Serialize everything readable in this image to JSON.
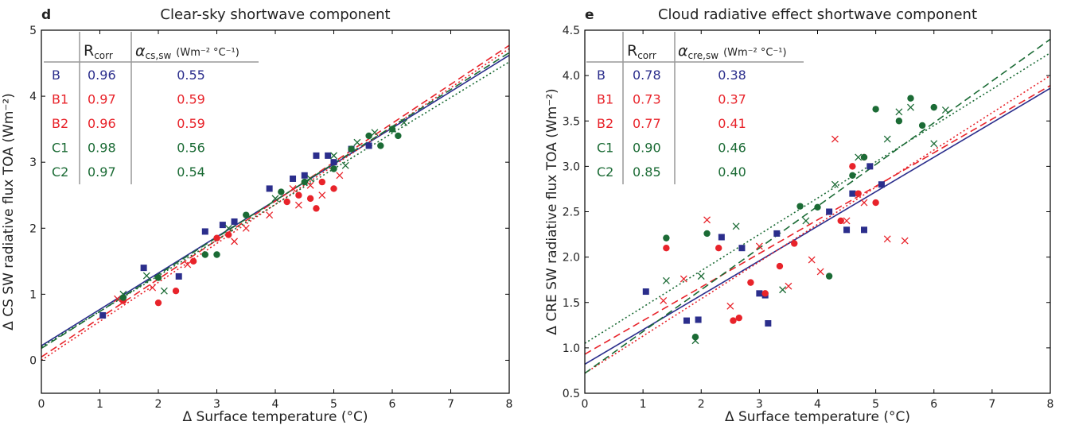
{
  "chart_data": [
    {
      "type": "scatter",
      "panel": "d",
      "title": "Clear-sky shortwave component",
      "xlabel": "Δ Surface temperature (°C)",
      "ylabel": "Δ CS SW radiative flux TOA (Wm⁻²)",
      "xlim": [
        0,
        8
      ],
      "ylim": [
        -0.5,
        5
      ],
      "xticks": [
        0,
        1,
        2,
        3,
        4,
        5,
        6,
        7,
        8
      ],
      "yticks": [
        0,
        1,
        2,
        3,
        4,
        5
      ],
      "table_header": {
        "r_main": "R",
        "r_sub": "corr",
        "a_main": "α",
        "a_sub": "cs,sw",
        "a_unit": "(Wm⁻² °C⁻¹)"
      },
      "series": [
        {
          "name": "B",
          "color": "#2b2e8c",
          "marker": "square",
          "line": "solid",
          "r_corr": 0.96,
          "slope": 0.55,
          "intercept": 0.22,
          "x": [
            1.05,
            1.75,
            2.35,
            2.8,
            3.1,
            3.3,
            3.9,
            4.3,
            4.5,
            4.7,
            4.9,
            5.0,
            5.3,
            5.6
          ],
          "y": [
            0.68,
            1.4,
            1.27,
            1.95,
            2.05,
            2.1,
            2.6,
            2.75,
            2.8,
            3.1,
            3.1,
            3.0,
            3.2,
            3.25
          ]
        },
        {
          "name": "B1",
          "color": "#e8232a",
          "marker": "circle",
          "line": "dashed",
          "r_corr": 0.97,
          "slope": 0.59,
          "intercept": 0.05,
          "x": [
            1.4,
            2.0,
            2.3,
            2.6,
            3.0,
            3.2,
            4.2,
            4.4,
            4.6,
            4.7,
            4.8,
            5.0
          ],
          "y": [
            0.9,
            0.87,
            1.05,
            1.5,
            1.85,
            1.9,
            2.4,
            2.5,
            2.45,
            2.3,
            2.7,
            2.6
          ]
        },
        {
          "name": "B2",
          "color": "#e8232a",
          "marker": "x",
          "line": "dotted",
          "r_corr": 0.96,
          "slope": 0.59,
          "intercept": 0.0,
          "x": [
            1.3,
            1.9,
            2.5,
            3.3,
            3.5,
            3.9,
            4.3,
            4.6,
            4.8,
            5.1,
            4.4
          ],
          "y": [
            0.93,
            1.1,
            1.45,
            1.8,
            2.0,
            2.2,
            2.6,
            2.65,
            2.5,
            2.8,
            2.35
          ]
        },
        {
          "name": "C1",
          "color": "#1b6b35",
          "marker": "circle",
          "line": "dashed",
          "r_corr": 0.98,
          "slope": 0.56,
          "intercept": 0.18,
          "x": [
            1.4,
            2.0,
            2.8,
            3.0,
            3.5,
            4.1,
            4.5,
            5.0,
            5.3,
            5.6,
            5.8,
            6.0,
            6.1
          ],
          "y": [
            0.95,
            1.25,
            1.6,
            1.6,
            2.2,
            2.55,
            2.7,
            2.9,
            3.2,
            3.4,
            3.25,
            3.5,
            3.4
          ]
        },
        {
          "name": "C2",
          "color": "#1b6b35",
          "marker": "x",
          "line": "dotted",
          "r_corr": 0.97,
          "slope": 0.54,
          "intercept": 0.2,
          "x": [
            1.4,
            1.8,
            2.1,
            3.2,
            4.0,
            4.6,
            5.0,
            5.4,
            5.7,
            6.0,
            6.2,
            5.2
          ],
          "y": [
            1.0,
            1.28,
            1.05,
            2.0,
            2.45,
            2.75,
            3.1,
            3.3,
            3.45,
            3.5,
            3.6,
            2.95
          ]
        }
      ]
    },
    {
      "type": "scatter",
      "panel": "e",
      "title": "Cloud radiative effect shortwave component",
      "xlabel": "Δ Surface temperature (°C)",
      "ylabel": "Δ CRE SW radiative flux TOA (Wm⁻²)",
      "xlim": [
        0,
        8
      ],
      "ylim": [
        0.5,
        4.5
      ],
      "xticks": [
        0,
        1,
        2,
        3,
        4,
        5,
        6,
        7,
        8
      ],
      "yticks": [
        0.5,
        {
          "value": 1,
          "label": "1.0"
        },
        1.5,
        {
          "value": 2,
          "label": "2.0"
        },
        2.5,
        {
          "value": 3,
          "label": "3.0"
        },
        3.5,
        {
          "value": 4,
          "label": "4.0"
        },
        4.5
      ],
      "table_header": {
        "r_main": "R",
        "r_sub": "corr",
        "a_main": "α",
        "a_sub": "cre,sw",
        "a_unit": "(Wm⁻² °C⁻¹)"
      },
      "series": [
        {
          "name": "B",
          "color": "#2b2e8c",
          "marker": "square",
          "line": "solid",
          "r_corr": 0.78,
          "slope": 0.38,
          "intercept": 0.82,
          "x": [
            1.05,
            1.75,
            1.95,
            2.35,
            2.7,
            3.0,
            3.1,
            3.15,
            3.3,
            4.2,
            4.5,
            4.6,
            4.8,
            4.9,
            5.1
          ],
          "y": [
            1.62,
            1.3,
            1.31,
            2.22,
            2.1,
            1.6,
            1.58,
            1.27,
            2.26,
            2.5,
            2.3,
            2.7,
            2.3,
            3.0,
            2.8
          ]
        },
        {
          "name": "B1",
          "color": "#e8232a",
          "marker": "circle",
          "line": "dashed",
          "r_corr": 0.73,
          "slope": 0.37,
          "intercept": 0.93,
          "x": [
            1.4,
            2.3,
            2.55,
            2.65,
            2.85,
            3.1,
            3.35,
            4.4,
            4.6,
            4.7,
            4.8,
            5.0,
            3.6
          ],
          "y": [
            2.1,
            2.1,
            1.3,
            1.33,
            1.72,
            1.6,
            1.9,
            2.4,
            3.0,
            2.7,
            3.1,
            2.6,
            2.15
          ]
        },
        {
          "name": "B2",
          "color": "#e8232a",
          "marker": "x",
          "line": "dotted",
          "r_corr": 0.77,
          "slope": 0.41,
          "intercept": 0.72,
          "x": [
            1.35,
            1.7,
            2.1,
            2.5,
            3.0,
            3.5,
            3.9,
            4.05,
            4.3,
            4.5,
            4.8,
            5.2,
            5.5
          ],
          "y": [
            1.52,
            1.76,
            2.41,
            1.46,
            2.12,
            1.68,
            1.97,
            1.84,
            3.3,
            2.4,
            2.6,
            2.2,
            2.18
          ]
        },
        {
          "name": "C1",
          "color": "#1b6b35",
          "marker": "circle",
          "line": "dashed",
          "r_corr": 0.9,
          "r_corr_label": "0.90",
          "slope": 0.46,
          "intercept": 0.72,
          "x": [
            1.4,
            1.9,
            2.1,
            3.7,
            4.0,
            4.2,
            4.6,
            5.0,
            5.4,
            5.6,
            5.8,
            6.0,
            4.8
          ],
          "y": [
            2.21,
            1.12,
            2.26,
            2.56,
            2.55,
            1.79,
            2.9,
            3.63,
            3.5,
            3.75,
            3.45,
            3.65,
            3.1
          ]
        },
        {
          "name": "C2",
          "color": "#1b6b35",
          "marker": "x",
          "line": "dotted",
          "r_corr": 0.85,
          "slope": 0.4,
          "slope_label": "0.40",
          "intercept": 1.05,
          "x": [
            1.4,
            1.9,
            2.0,
            2.6,
            3.4,
            3.8,
            4.3,
            4.7,
            5.2,
            5.6,
            6.0,
            6.2,
            5.4
          ],
          "y": [
            1.74,
            1.08,
            1.79,
            2.34,
            1.64,
            2.4,
            2.8,
            3.1,
            3.3,
            3.65,
            3.25,
            3.62,
            3.6
          ]
        }
      ]
    }
  ]
}
